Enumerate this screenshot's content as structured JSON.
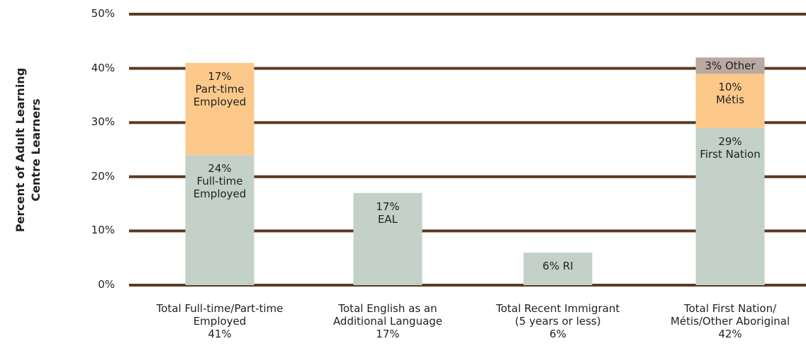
{
  "chart_data": {
    "type": "stacked_bar",
    "y_label": "Percent of Adult Learning\nCentre Learners",
    "categories": [
      "Total Full-time/Part-time\nEmployed\n41%",
      "Total English as an\nAdditional Language\n17%",
      "Total Recent Immigrant\n(5 years or less)\n6%",
      "Total First Nation/\nMétis/Other Aboriginal\n42%"
    ],
    "series": [
      {
        "color": "#c3d1c8",
        "values": [
          24,
          17,
          6,
          29
        ],
        "value_labels": [
          "24%\nFull-time\nEmployed",
          "17%\nEAL",
          "6% RI",
          "29%\nFirst Nation"
        ]
      },
      {
        "color": "#fdc98b",
        "values": [
          17,
          null,
          null,
          10
        ],
        "value_labels": [
          "17%\nPart-time\nEmployed",
          null,
          null,
          "10%\nMétis"
        ]
      },
      {
        "color": "#b9a9a0",
        "values": [
          null,
          null,
          null,
          3
        ],
        "value_labels": [
          null,
          null,
          null,
          "3% Other"
        ]
      }
    ],
    "ylim": [
      0,
      50
    ],
    "yticks": [
      {
        "value": 0,
        "label": "0%"
      },
      {
        "value": 10,
        "label": "10%"
      },
      {
        "value": 20,
        "label": "20%"
      },
      {
        "value": 30,
        "label": "30%"
      },
      {
        "value": 40,
        "label": "40%"
      },
      {
        "value": 50,
        "label": "50%"
      }
    ],
    "grid": true,
    "grid_color": "#5b3b24"
  }
}
